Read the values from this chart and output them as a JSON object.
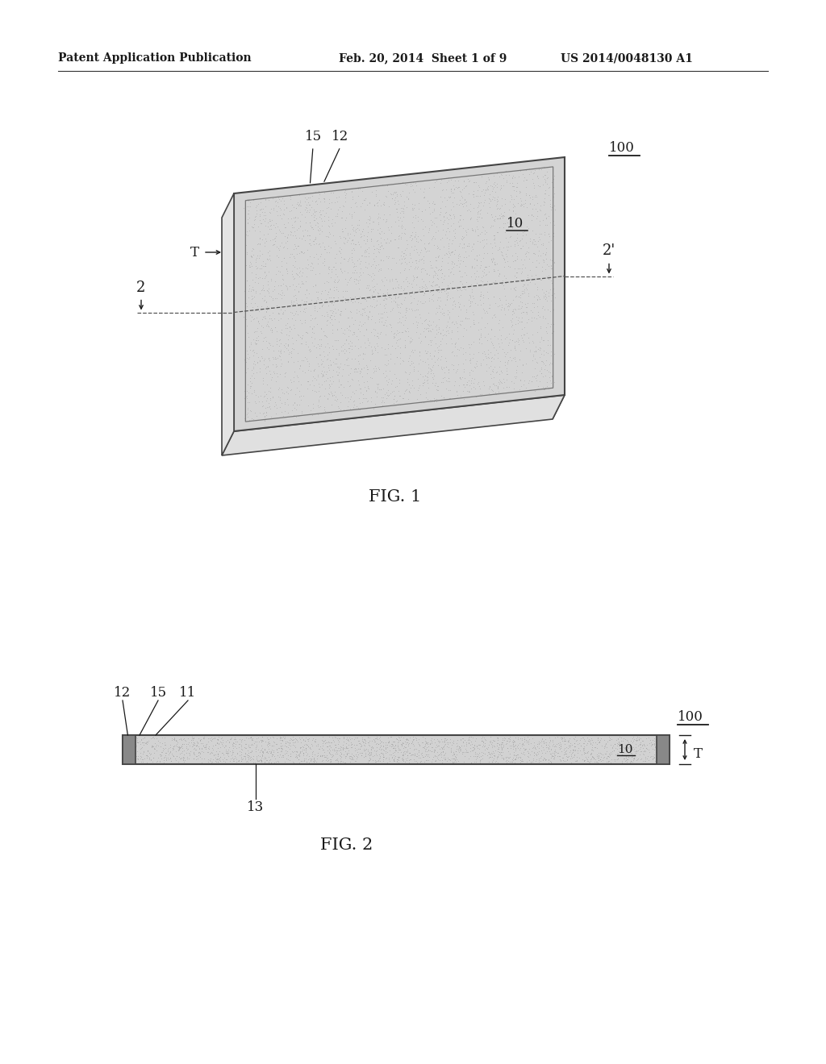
{
  "bg_color": "#ffffff",
  "text_color": "#1a1a1a",
  "header_left": "Patent Application Publication",
  "header_mid": "Feb. 20, 2014  Sheet 1 of 9",
  "header_right": "US 2014/0048130 A1",
  "fig1_label": "FIG. 1",
  "fig2_label": "FIG. 2",
  "label_100_1": "100",
  "label_10_1": "10",
  "label_15_1": "15",
  "label_12_1": "12",
  "label_T_1": "T",
  "label_2": "2",
  "label_2prime": "2'",
  "label_100_2": "100",
  "label_10_2": "10",
  "label_12_2": "12",
  "label_15_2": "15",
  "label_11_2": "11",
  "label_13_2": "13",
  "label_T_2": "T"
}
